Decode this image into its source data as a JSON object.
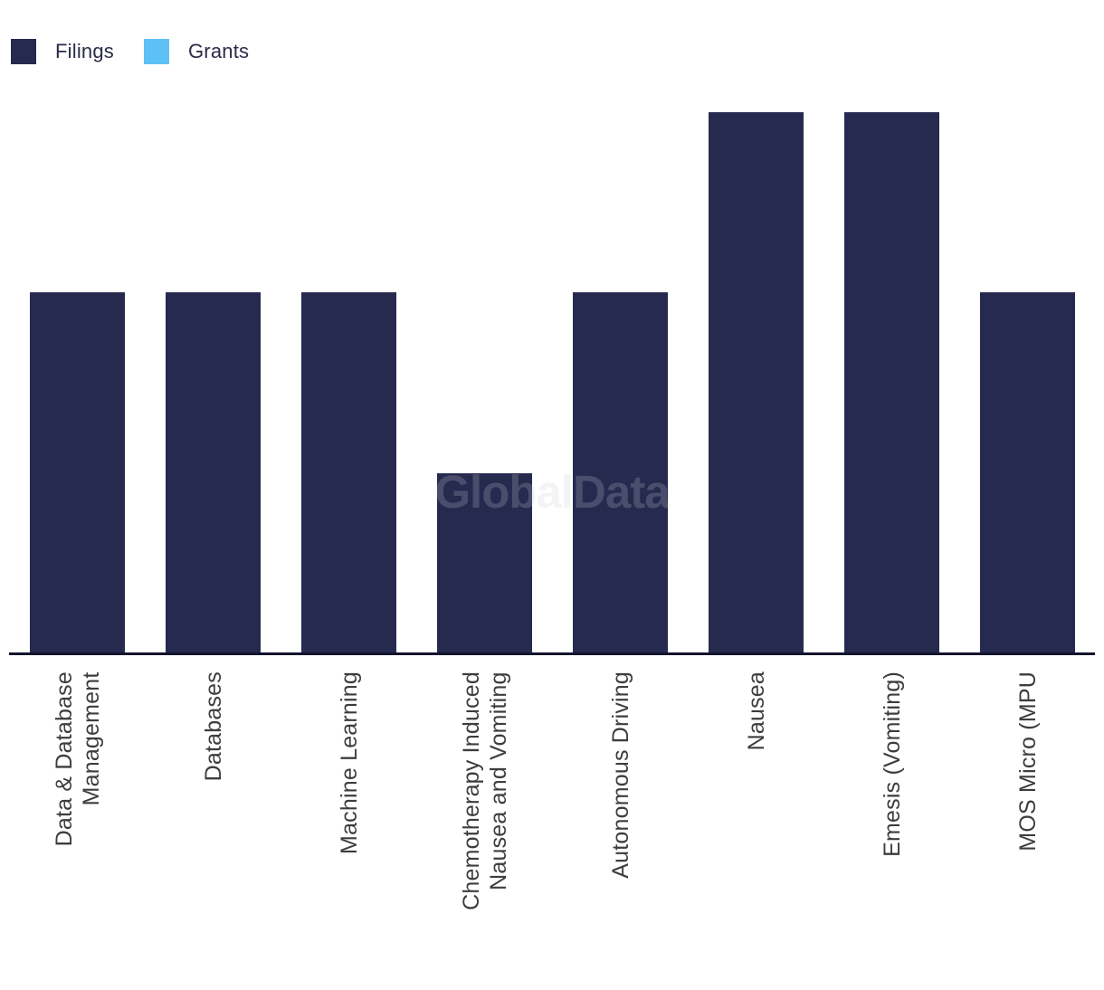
{
  "legend": {
    "items": [
      {
        "label": "Filings",
        "color": "#272a4f"
      },
      {
        "label": "Grants",
        "color": "#5ec1f6"
      }
    ]
  },
  "watermark": "GlobalData",
  "chart_data": {
    "type": "bar",
    "categories": [
      "Data & Database\nManagement",
      "Databases",
      "Machine Learning",
      "Chemotherapy Induced\nNausea and Vomiting",
      "Autonomous Driving",
      "Nausea",
      "Emesis (Vomiting)",
      "MOS Micro (MPU"
    ],
    "series": [
      {
        "name": "Filings",
        "color": "#272a4f",
        "values": [
          2,
          2,
          2,
          1,
          2,
          3,
          3,
          2
        ]
      },
      {
        "name": "Grants",
        "color": "#5ec1f6",
        "values": [
          0,
          0,
          0,
          0,
          0,
          0,
          0,
          0
        ]
      }
    ],
    "title": "",
    "xlabel": "",
    "ylabel": "",
    "ylim": [
      0,
      3
    ],
    "grid": false,
    "y_axis_visible": false,
    "legend_position": "top-left",
    "watermark_text": "GlobalData"
  }
}
